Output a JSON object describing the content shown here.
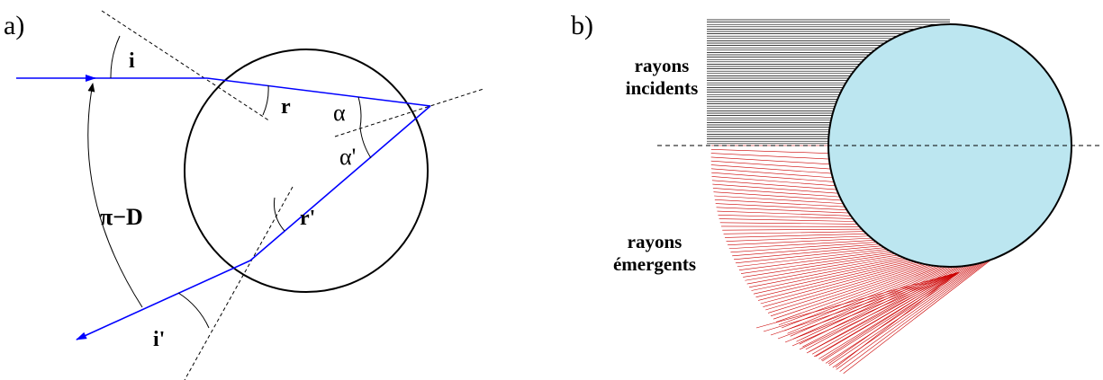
{
  "panel_a": {
    "label": "a)",
    "angles": {
      "i": "i",
      "r": "r",
      "alpha": "α",
      "alpha_prime": "α'",
      "r_prime": "r'",
      "deviation": "π−D",
      "i_prime": "i'"
    }
  },
  "panel_b": {
    "label": "b)",
    "incident_label": [
      "rayons",
      "incidents"
    ],
    "emergent_label": [
      "rayons",
      "émergents"
    ]
  }
}
